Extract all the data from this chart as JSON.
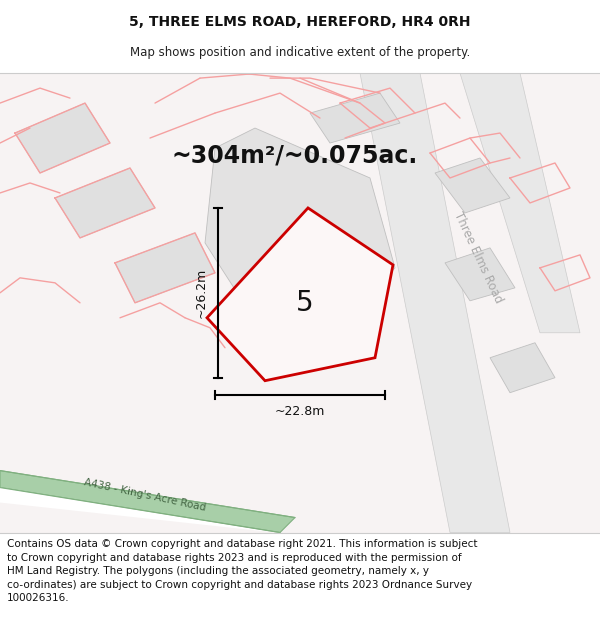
{
  "title": "5, THREE ELMS ROAD, HEREFORD, HR4 0RH",
  "subtitle": "Map shows position and indicative extent of the property.",
  "area_text": "~304m²/~0.075ac.",
  "plot_number": "5",
  "width_label": "~22.8m",
  "height_label": "~26.2m",
  "footer_text": "Contains OS data © Crown copyright and database right 2021. This information is subject\nto Crown copyright and database rights 2023 and is reproduced with the permission of\nHM Land Registry. The polygons (including the associated geometry, namely x, y\nco-ordinates) are subject to Crown copyright and database rights 2023 Ordnance Survey\n100026316.",
  "title_fontsize": 10,
  "subtitle_fontsize": 8.5,
  "area_fontsize": 17,
  "footer_fontsize": 7.5,
  "dim_fontsize": 9,
  "plot_num_fontsize": 20,
  "road_label": "A438 - King's Acre Road",
  "street_label": "Three Elms Road"
}
